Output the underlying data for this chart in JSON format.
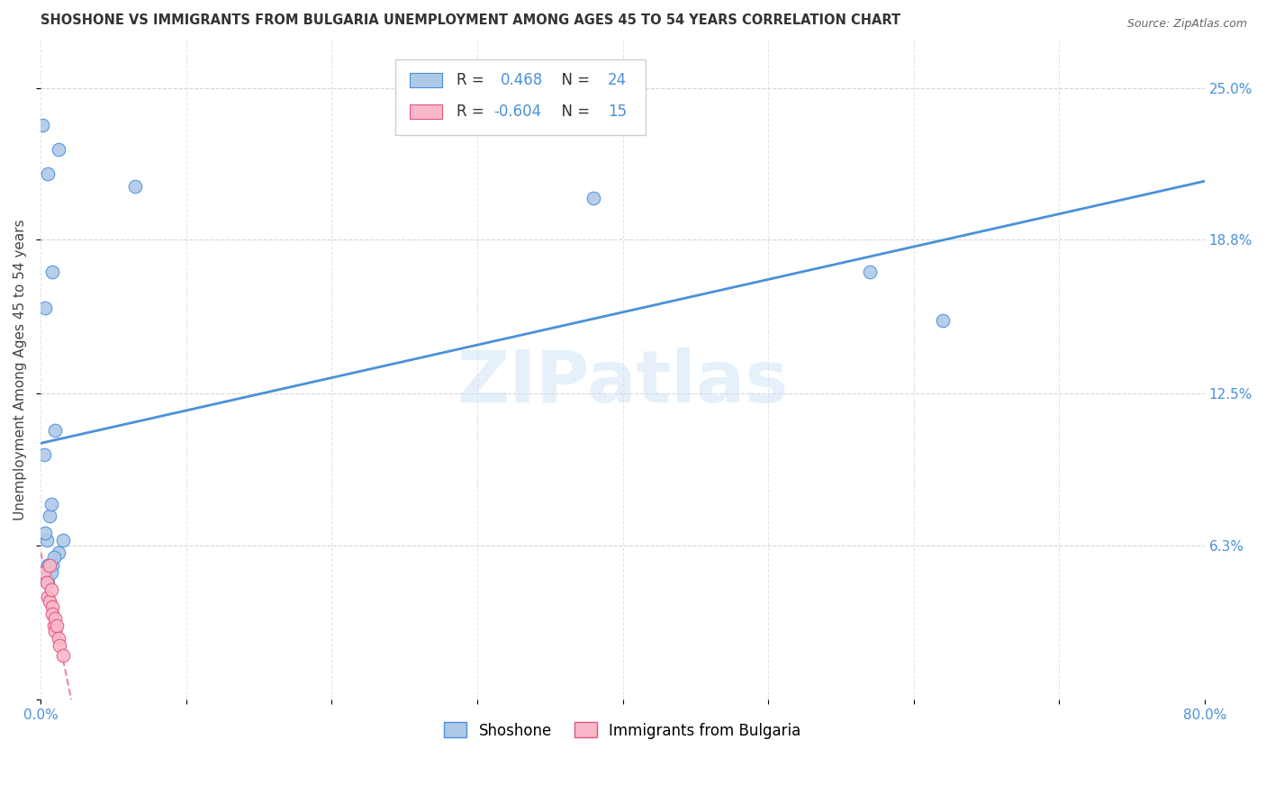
{
  "title": "SHOSHONE VS IMMIGRANTS FROM BULGARIA UNEMPLOYMENT AMONG AGES 45 TO 54 YEARS CORRELATION CHART",
  "source": "Source: ZipAtlas.com",
  "ylabel": "Unemployment Among Ages 45 to 54 years",
  "xlim": [
    0.0,
    0.8
  ],
  "ylim": [
    0.0,
    0.27
  ],
  "ytick_vals": [
    0.0,
    0.063,
    0.125,
    0.188,
    0.25
  ],
  "right_ytick_labels": [
    "25.0%",
    "18.8%",
    "12.5%",
    "6.3%"
  ],
  "right_ytick_vals": [
    0.25,
    0.188,
    0.125,
    0.063
  ],
  "shoshone_x": [
    0.001,
    0.012,
    0.008,
    0.005,
    0.003,
    0.065,
    0.38,
    0.57,
    0.004,
    0.006,
    0.01,
    0.003,
    0.005,
    0.007,
    0.012,
    0.002,
    0.008,
    0.015,
    0.005,
    0.005,
    0.003,
    0.007,
    0.009,
    0.62
  ],
  "shoshone_y": [
    0.235,
    0.225,
    0.175,
    0.215,
    0.16,
    0.21,
    0.205,
    0.175,
    0.065,
    0.075,
    0.11,
    0.05,
    0.055,
    0.08,
    0.06,
    0.1,
    0.055,
    0.065,
    0.048,
    0.055,
    0.068,
    0.052,
    0.058,
    0.155
  ],
  "bulgaria_x": [
    0.002,
    0.004,
    0.005,
    0.006,
    0.006,
    0.007,
    0.008,
    0.008,
    0.009,
    0.01,
    0.01,
    0.011,
    0.012,
    0.013,
    0.015
  ],
  "bulgaria_y": [
    0.052,
    0.048,
    0.042,
    0.055,
    0.04,
    0.045,
    0.038,
    0.035,
    0.03,
    0.033,
    0.028,
    0.03,
    0.025,
    0.022,
    0.018
  ],
  "shoshone_color": "#aec9e8",
  "shoshone_line_color": "#4a90d9",
  "bulgaria_color": "#f9b8c8",
  "bulgaria_line_color": "#e05580",
  "R_shoshone": 0.468,
  "N_shoshone": 24,
  "R_bulgaria": -0.604,
  "N_bulgaria": 15,
  "watermark": "ZIPatlas",
  "background_color": "#ffffff",
  "grid_color": "#cccccc"
}
